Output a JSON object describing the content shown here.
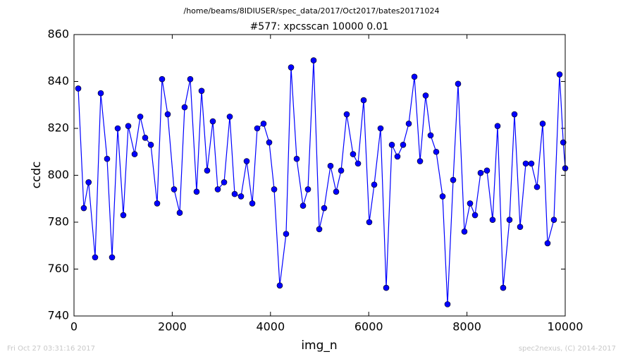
{
  "chart_data": {
    "type": "line",
    "suptitle": "/home/beams/8IDIUSER/spec_data/2017/Oct2017/bates20171024",
    "title": "#577: xpcsscan 10000 0.01",
    "xlabel": "img_n",
    "ylabel": "ccdc",
    "footer_left": "Fri Oct 27 03:31:16 2017",
    "footer_right": "spec2nexus, (C) 2014-2017",
    "xlim": [
      0,
      10000
    ],
    "ylim": [
      740,
      860
    ],
    "xticks": [
      0,
      2000,
      4000,
      6000,
      8000,
      10000
    ],
    "yticks": [
      740,
      760,
      780,
      800,
      820,
      840,
      860
    ],
    "color": "#0000ff",
    "x": [
      86,
      200,
      297,
      430,
      545,
      674,
      775,
      890,
      1004,
      1105,
      1234,
      1349,
      1449,
      1564,
      1693,
      1793,
      1908,
      2037,
      2152,
      2252,
      2367,
      2496,
      2597,
      2711,
      2826,
      2927,
      3056,
      3171,
      3271,
      3400,
      3515,
      3630,
      3730,
      3859,
      3974,
      4075,
      4189,
      4318,
      4419,
      4534,
      4663,
      4763,
      4878,
      4993,
      5093,
      5222,
      5337,
      5438,
      5552,
      5681,
      5782,
      5897,
      6011,
      6112,
      6241,
      6356,
      6471,
      6585,
      6700,
      6815,
      6930,
      7045,
      7159,
      7260,
      7374,
      7504,
      7604,
      7719,
      7819,
      7948,
      8063,
      8164,
      8278,
      8407,
      8522,
      8623,
      8737,
      8866,
      8967,
      9082,
      9197,
      9311,
      9426,
      9541,
      9641,
      9770,
      9885,
      9960,
      10000
    ],
    "values": [
      837,
      786,
      797,
      765,
      835,
      807,
      765,
      820,
      783,
      821,
      809,
      825,
      816,
      813,
      788,
      841,
      826,
      794,
      784,
      829,
      841,
      793,
      836,
      802,
      823,
      794,
      797,
      825,
      792,
      791,
      806,
      788,
      820,
      822,
      814,
      794,
      753,
      775,
      846,
      807,
      787,
      794,
      849,
      777,
      786,
      804,
      793,
      802,
      826,
      809,
      805,
      832,
      780,
      796,
      820,
      752,
      813,
      808,
      813,
      822,
      842,
      806,
      834,
      817,
      810,
      791,
      745,
      798,
      839,
      776,
      788,
      783,
      801,
      802,
      781,
      821,
      752,
      781,
      826,
      778,
      805,
      805,
      795,
      822,
      771,
      781,
      843,
      814,
      803
    ]
  }
}
